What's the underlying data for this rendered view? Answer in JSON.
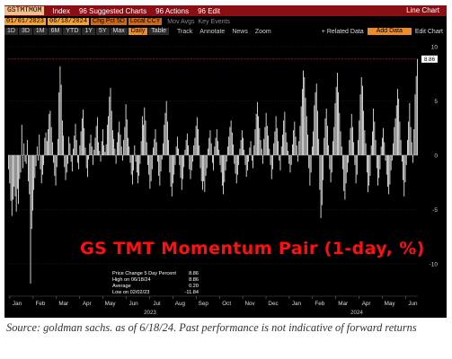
{
  "toolbar": {
    "ticker": "GSTMTMOM",
    "asset_class": "Index",
    "suggested_charts": "96 Suggested Charts",
    "actions": "96 Actions",
    "edit": "96 Edit",
    "window_title": "Line Chart",
    "start_date": "01/01/2023",
    "end_date": "06/18/2024",
    "period": "Chg Pct 5D",
    "currency": "Local CCY",
    "mov_avg": "Mov Avgs",
    "key_events": "Key Events",
    "periods": [
      "1D",
      "3D",
      "1M",
      "6M",
      "YTD",
      "1Y",
      "5Y",
      "Max",
      "Daily"
    ],
    "selected_period": "Daily",
    "table": "Table",
    "track": "Track",
    "annotate": "Annotate",
    "news": "News",
    "zoom": "Zoom",
    "related_data": "+ Related Data",
    "add_data": "Add Data",
    "edit_chart": "Edit Chart"
  },
  "chart_data": {
    "type": "bar",
    "title": "GS TMT Momentum Pair (1-day, %)",
    "ylim": [
      -12.5,
      10.5
    ],
    "yticks": [
      -10,
      -5,
      0,
      5,
      10
    ],
    "x_month_labels": [
      "Jan",
      "Feb",
      "Mar",
      "Apr",
      "May",
      "Jun",
      "Jul",
      "Aug",
      "Sep",
      "Oct",
      "Nov",
      "Dec",
      "Jan",
      "Feb",
      "Mar",
      "Apr",
      "May",
      "Jun"
    ],
    "x_year_labels": [
      "2023",
      "2024"
    ],
    "last_value_label": "8.86",
    "legend": [
      {
        "label": "Price Change 5 Day Percent",
        "value": "8.86"
      },
      {
        "label": "High on 06/18/24",
        "value": "8.86"
      },
      {
        "label": "Average",
        "value": "0.20"
      },
      {
        "label": "Low on 02/02/23",
        "value": "-11.84"
      }
    ],
    "bar_color": "#ffffff",
    "high_line_color": "#d9282d",
    "start": "2023-01-03",
    "values": [
      -1.3,
      -2.6,
      -4.2,
      -5.6,
      -4.1,
      -2.9,
      -3.8,
      -5.2,
      -3.1,
      -4.5,
      -2.2,
      -1.6,
      2.8,
      -1.2,
      1.1,
      -0.6,
      -0.8,
      1.4,
      -2.4,
      -3.6,
      -11.84,
      -6.8,
      -5.1,
      -3.2,
      -2.1,
      -1.0,
      0.8,
      -0.5,
      1.9,
      -1.3,
      -2.6,
      -1.8,
      -0.9,
      1.6,
      2.1,
      1.3,
      2.4,
      3.8,
      4.1,
      2.6,
      1.2,
      -0.7,
      -1.9,
      -2.8,
      -1.1,
      1.5,
      5.8,
      8.2,
      6.5,
      3.2,
      1.8,
      -1.1,
      -2.3,
      -1.6,
      -0.8,
      1.7,
      1.1,
      -0.6,
      -1.5,
      0.6,
      1.8,
      2.9,
      1.4,
      -0.7,
      -1.3,
      0.9,
      2.2,
      3.4,
      4.2,
      2.5,
      0.7,
      -1.2,
      -2.0,
      -0.4,
      1.1,
      1.9,
      0.8,
      -0.9,
      0.5,
      1.6,
      2.7,
      3.5,
      1.2,
      0.4,
      -0.6,
      1.3,
      2.4,
      0.9,
      0.3,
      1.0,
      2.8,
      3.6,
      5.4,
      6.2,
      4.1,
      2.3,
      1.5,
      0.6,
      -0.8,
      1.2,
      2.1,
      3.1,
      1.9,
      0.8,
      -0.5,
      1.4,
      2.6,
      4.7,
      3.3,
      1.6,
      0.8,
      -0.7,
      -1.8,
      -2.7,
      -1.4,
      0.9,
      -0.6,
      -1.6,
      -2.6,
      -1.9,
      -0.8,
      1.3,
      3.6,
      2.8,
      4.4,
      3.2,
      1.2,
      -0.9,
      -1.8,
      -3.1,
      -2.4,
      -1.3,
      0.7,
      1.5,
      2.4,
      1.2,
      -0.6,
      -1.9,
      -2.8,
      -1.5,
      -0.4,
      1.1,
      2.8,
      3.9,
      5.0,
      3.1,
      1.4,
      -1.6,
      -2.9,
      -3.8,
      -2.6,
      -1.8,
      -0.9,
      0.8,
      1.7,
      0.6,
      -0.9,
      -2.1,
      -3.2,
      -2.2,
      -1.1,
      0.5,
      1.4,
      2.0,
      0.9,
      -1.3,
      -2.2,
      -1.4,
      -0.6,
      0.9,
      1.6,
      2.7,
      3.5,
      2.4,
      0.9,
      -1.2,
      -2.4,
      -3.2,
      -2.4,
      -3.4,
      -1.9,
      -1.2,
      0.6,
      1.6,
      2.3,
      1.1,
      -0.7,
      -1.4,
      0.8,
      1.6,
      2.4,
      1.3,
      0.5,
      -0.9,
      -1.6,
      -2.8,
      -3.6,
      -2.5,
      -1.4,
      -0.6,
      0.8,
      1.7,
      2.6,
      3.2,
      2.1,
      1.0,
      -0.8,
      -1.7,
      -2.6,
      -1.8,
      -0.9,
      0.6,
      1.4,
      2.3,
      1.6,
      0.5,
      -0.9,
      -2.0,
      -1.4,
      -0.6,
      0.7,
      1.3,
      -0.5,
      -1.2,
      0.9,
      2.4,
      3.8,
      4.9,
      3.6,
      2.5,
      1.4,
      0.6,
      -0.8,
      1.5,
      2.6,
      3.9,
      2.7,
      1.8,
      0.6,
      -0.9,
      -2.2,
      -1.3,
      1.1,
      2.2,
      3.6,
      2.5,
      1.3,
      -0.5,
      -1.4,
      0.8,
      1.9,
      3.2,
      4.0,
      2.1,
      1.2,
      0.4,
      -0.8,
      -1.6,
      -0.9,
      1.0,
      2.3,
      3.1,
      1.7,
      0.9,
      -0.6,
      1.3,
      2.7,
      4.5,
      6.1,
      7.8,
      7.2,
      5.3,
      3.6,
      1.9,
      -1.2,
      -2.8,
      -1.6,
      0.8,
      2.2,
      4.6,
      5.8,
      6.6,
      4.1,
      1.5,
      -3.2,
      -5.8,
      -4.6,
      -2.3,
      1.6,
      3.4,
      4.3,
      2.7,
      0.9,
      -1.3,
      -2.5,
      -1.6,
      1.3,
      2.6,
      4.8,
      6.3,
      7.6,
      5.8,
      3.9,
      2.2,
      0.8,
      -1.3,
      -3.3,
      -4.1,
      -2.6,
      -1.6,
      -0.7,
      1.4,
      2.5,
      3.8,
      2.6,
      1.2,
      -0.9,
      -2.6,
      -1.8,
      1.4,
      3.2,
      5.6,
      7.2,
      6.4,
      4.1,
      2.3,
      1.1,
      -1.6,
      -3.4,
      -2.8,
      -1.9,
      0.9,
      2.2,
      4.3,
      3.1,
      1.4,
      -1.2,
      -2.8,
      -2.1,
      -1.3,
      0.8,
      1.6,
      2.5,
      1.2,
      -0.5,
      -1.8,
      -2.9,
      -3.6,
      -2.7,
      -1.4,
      -0.5,
      1.1,
      2.6,
      3.4,
      4.6,
      6.1,
      5.2,
      3.1,
      1.4,
      -0.6,
      -2.3,
      -3.8,
      -2.5,
      -0.9,
      1.4,
      3.1,
      4.8,
      2.6,
      1.2,
      -0.7,
      2.4,
      5.6,
      7.3,
      8.86
    ]
  },
  "source_note": "Source: goldman sachs. as of 6/18/24. Past performance is not indicative of forward returns"
}
